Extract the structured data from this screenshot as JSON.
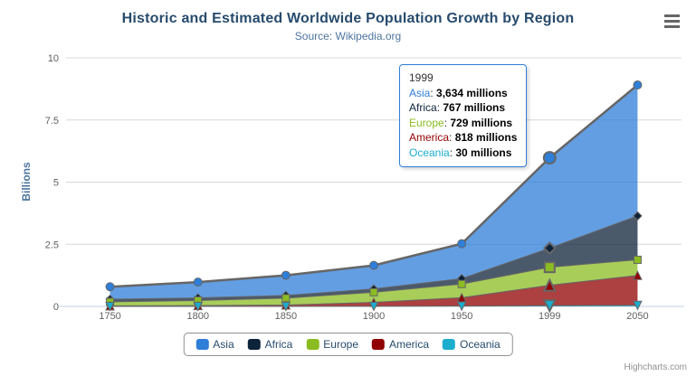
{
  "chart_data": {
    "type": "area",
    "stacking": "normal",
    "title": "Historic and Estimated Worldwide Population Growth by Region",
    "subtitle": "Source: Wikipedia.org",
    "categories": [
      "1750",
      "1800",
      "1850",
      "1900",
      "1950",
      "1999",
      "2050"
    ],
    "xlabel": "",
    "ylabel": "Billions",
    "ylim": [
      0,
      10
    ],
    "yticks": [
      0,
      2.5,
      5,
      7.5,
      10
    ],
    "ytick_labels": [
      "0",
      "2.5",
      "5",
      "7.5",
      "10"
    ],
    "values_unit": "millions",
    "grid": true,
    "legend_position": "bottom",
    "line_color": "#666666",
    "fill_opacity": 0.75,
    "grid_color": "#d8d8d8",
    "axis_line_color": "#c0d0e0",
    "tick_label_color": "#606060",
    "hover": {
      "index": 5,
      "series": "Asia"
    },
    "series": [
      {
        "name": "Asia",
        "color": "#2f7ed8",
        "marker": "circle",
        "values": [
          502,
          635,
          809,
          947,
          1402,
          3634,
          5268
        ]
      },
      {
        "name": "Africa",
        "color": "#0d233a",
        "marker": "diamond",
        "values": [
          106,
          107,
          111,
          133,
          221,
          767,
          1766
        ]
      },
      {
        "name": "Europe",
        "color": "#8bbc21",
        "marker": "square",
        "values": [
          163,
          203,
          276,
          408,
          547,
          729,
          628
        ]
      },
      {
        "name": "America",
        "color": "#910000",
        "marker": "triangle",
        "values": [
          18,
          31,
          54,
          156,
          339,
          818,
          1201
        ]
      },
      {
        "name": "Oceania",
        "color": "#1aadce",
        "marker": "triangle-down",
        "values": [
          2,
          2,
          2,
          6,
          13,
          30,
          46
        ]
      }
    ]
  },
  "tooltip": {
    "header": "1999",
    "rows": [
      {
        "name": "Asia",
        "value": "3,634 millions"
      },
      {
        "name": "Africa",
        "value": "767 millions"
      },
      {
        "name": "Europe",
        "value": "729 millions"
      },
      {
        "name": "America",
        "value": "818 millions"
      },
      {
        "name": "Oceania",
        "value": "30 millions"
      }
    ]
  },
  "icons": {
    "menu": "hamburger-menu-icon"
  },
  "credit": "Highcharts.com"
}
